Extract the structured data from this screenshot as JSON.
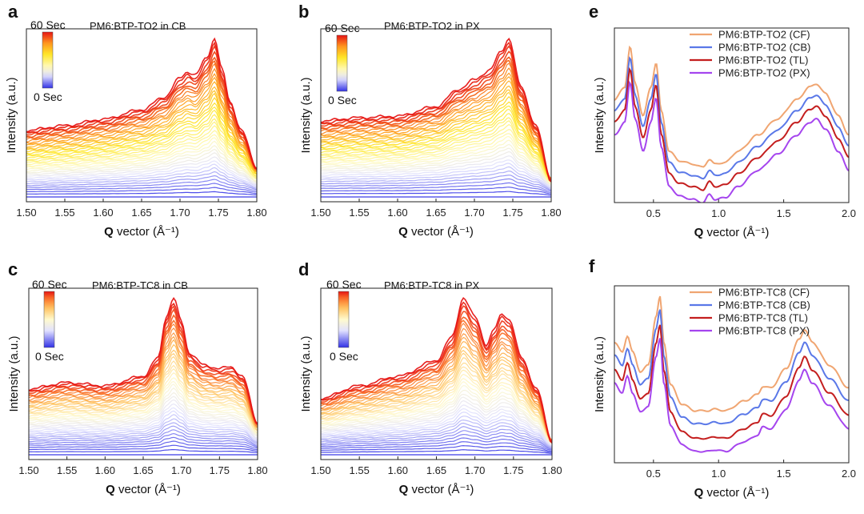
{
  "chart_data": [
    {
      "panel": "a",
      "type": "line",
      "title": "PM6:BTP-TO2 in CB",
      "xlabel_bold": "Q",
      "xlabel": "vector (Å⁻¹)",
      "ylabel": "Intensity (a.u.)",
      "xlim": [
        1.5,
        1.8
      ],
      "xticks": [
        "1.50",
        "1.55",
        "1.60",
        "1.65",
        "1.70",
        "1.75",
        "1.80"
      ],
      "colorbar": {
        "top": "60 Sec",
        "bottom": "0 Sec",
        "scheme": "blue-white-yellow-red"
      },
      "n_curves": 40,
      "x": [
        1.5,
        1.55,
        1.6,
        1.65,
        1.68,
        1.7,
        1.71,
        1.72,
        1.735,
        1.745,
        1.755,
        1.765,
        1.78,
        1.8
      ],
      "final_profile": [
        0.42,
        0.45,
        0.49,
        0.55,
        0.63,
        0.75,
        0.79,
        0.77,
        0.88,
        1.0,
        0.8,
        0.6,
        0.42,
        0.18
      ]
    },
    {
      "panel": "b",
      "type": "line",
      "title": "PM6:BTP-TO2 in PX",
      "xlabel_bold": "Q",
      "xlabel": "vector (Å⁻¹)",
      "ylabel": "Intensity (a.u.)",
      "xlim": [
        1.5,
        1.8
      ],
      "xticks": [
        "1.50",
        "1.55",
        "1.60",
        "1.65",
        "1.70",
        "1.75",
        "1.80"
      ],
      "colorbar": {
        "top": "60 Sec",
        "bottom": "0 Sec",
        "scheme": "blue-white-yellow-red"
      },
      "n_curves": 40,
      "x": [
        1.5,
        1.55,
        1.6,
        1.65,
        1.68,
        1.7,
        1.72,
        1.735,
        1.745,
        1.76,
        1.78,
        1.8
      ],
      "final_profile": [
        0.48,
        0.5,
        0.51,
        0.57,
        0.68,
        0.74,
        0.8,
        0.92,
        1.0,
        0.7,
        0.45,
        0.1
      ]
    },
    {
      "panel": "c",
      "type": "line",
      "title": "PM6:BTP-TC8 in CB",
      "xlabel_bold": "Q",
      "xlabel": "vector (Å⁻¹)",
      "ylabel": "Intensity (a.u.)",
      "xlim": [
        1.5,
        1.8
      ],
      "xticks": [
        "1.50",
        "1.55",
        "1.60",
        "1.65",
        "1.70",
        "1.75",
        "1.80"
      ],
      "colorbar": {
        "top": "60 Sec",
        "bottom": "0 Sec",
        "scheme": "blue-white-red"
      },
      "n_curves": 40,
      "x": [
        1.5,
        1.55,
        1.6,
        1.65,
        1.67,
        1.68,
        1.69,
        1.7,
        1.71,
        1.73,
        1.75,
        1.765,
        1.78,
        1.8
      ],
      "final_profile": [
        0.42,
        0.46,
        0.44,
        0.5,
        0.62,
        0.88,
        1.0,
        0.85,
        0.65,
        0.57,
        0.55,
        0.56,
        0.5,
        0.2
      ]
    },
    {
      "panel": "d",
      "type": "line",
      "title": "PM6:BTP-TC8 in PX",
      "xlabel_bold": "Q",
      "xlabel": "vector (Å⁻¹)",
      "ylabel": "Intensity (a.u.)",
      "xlim": [
        1.5,
        1.8
      ],
      "xticks": [
        "1.50",
        "1.55",
        "1.60",
        "1.65",
        "1.70",
        "1.75",
        "1.80"
      ],
      "colorbar": {
        "top": "60 Sec",
        "bottom": "0 Sec",
        "scheme": "blue-white-red"
      },
      "n_curves": 40,
      "x": [
        1.5,
        1.55,
        1.6,
        1.65,
        1.67,
        1.685,
        1.7,
        1.715,
        1.725,
        1.735,
        1.745,
        1.76,
        1.78,
        1.8
      ],
      "final_profile": [
        0.36,
        0.44,
        0.5,
        0.6,
        0.75,
        1.0,
        0.88,
        0.7,
        0.8,
        0.9,
        0.86,
        0.62,
        0.42,
        0.08
      ]
    },
    {
      "panel": "e",
      "type": "line",
      "xlabel_bold": "Q",
      "xlabel": "vector (Å⁻¹)",
      "ylabel": "Intensity (a.u.)",
      "xlim": [
        0.2,
        2.0
      ],
      "xticks": [
        "0.5",
        "1.0",
        "1.5",
        "2.0"
      ],
      "x": [
        0.2,
        0.28,
        0.32,
        0.36,
        0.42,
        0.48,
        0.52,
        0.56,
        0.62,
        0.7,
        0.8,
        0.88,
        0.93,
        0.97,
        1.05,
        1.15,
        1.3,
        1.45,
        1.6,
        1.7,
        1.75,
        1.82,
        1.92,
        2.0
      ],
      "series": [
        {
          "name": "PM6:BTP-TO2 (CF)",
          "color": "#f0a571",
          "offset": 0.0
        },
        {
          "name": "PM6:BTP-TO2 (CB)",
          "color": "#5a78e8",
          "offset": 0.07
        },
        {
          "name": "PM6:BTP-TO2 (TL)",
          "color": "#c41e1e",
          "offset": 0.14
        },
        {
          "name": "PM6:BTP-TO2 (PX)",
          "color": "#a545ee",
          "offset": 0.22
        }
      ],
      "base_profile": [
        0.62,
        0.7,
        0.95,
        0.72,
        0.52,
        0.7,
        0.85,
        0.55,
        0.3,
        0.24,
        0.22,
        0.2,
        0.25,
        0.22,
        0.23,
        0.3,
        0.4,
        0.5,
        0.62,
        0.7,
        0.72,
        0.66,
        0.52,
        0.4
      ]
    },
    {
      "panel": "f",
      "type": "line",
      "xlabel_bold": "Q",
      "xlabel": "vector (Å⁻¹)",
      "ylabel": "Intensity (a.u.)",
      "xlim": [
        0.2,
        2.0
      ],
      "xticks": [
        "0.5",
        "1.0",
        "1.5",
        "2.0"
      ],
      "x": [
        0.2,
        0.26,
        0.3,
        0.34,
        0.4,
        0.46,
        0.52,
        0.55,
        0.58,
        0.63,
        0.72,
        0.82,
        0.92,
        0.97,
        1.05,
        1.2,
        1.3,
        1.34,
        1.4,
        1.52,
        1.62,
        1.66,
        1.72,
        1.85,
        2.0
      ],
      "series": [
        {
          "name": "PM6:BTP-TC8 (CF)",
          "color": "#f0a571",
          "offset": 0.0
        },
        {
          "name": "PM6:BTP-TC8 (CB)",
          "color": "#5a78e8",
          "offset": 0.08
        },
        {
          "name": "PM6:BTP-TC8 (TL)",
          "color": "#c41e1e",
          "offset": 0.17
        },
        {
          "name": "PM6:BTP-TC8 (PX)",
          "color": "#a545ee",
          "offset": 0.25
        }
      ],
      "base_profile": [
        0.72,
        0.66,
        0.76,
        0.66,
        0.54,
        0.58,
        0.88,
        1.0,
        0.72,
        0.46,
        0.34,
        0.3,
        0.3,
        0.31,
        0.3,
        0.36,
        0.4,
        0.45,
        0.44,
        0.56,
        0.74,
        0.8,
        0.72,
        0.58,
        0.44
      ]
    }
  ]
}
